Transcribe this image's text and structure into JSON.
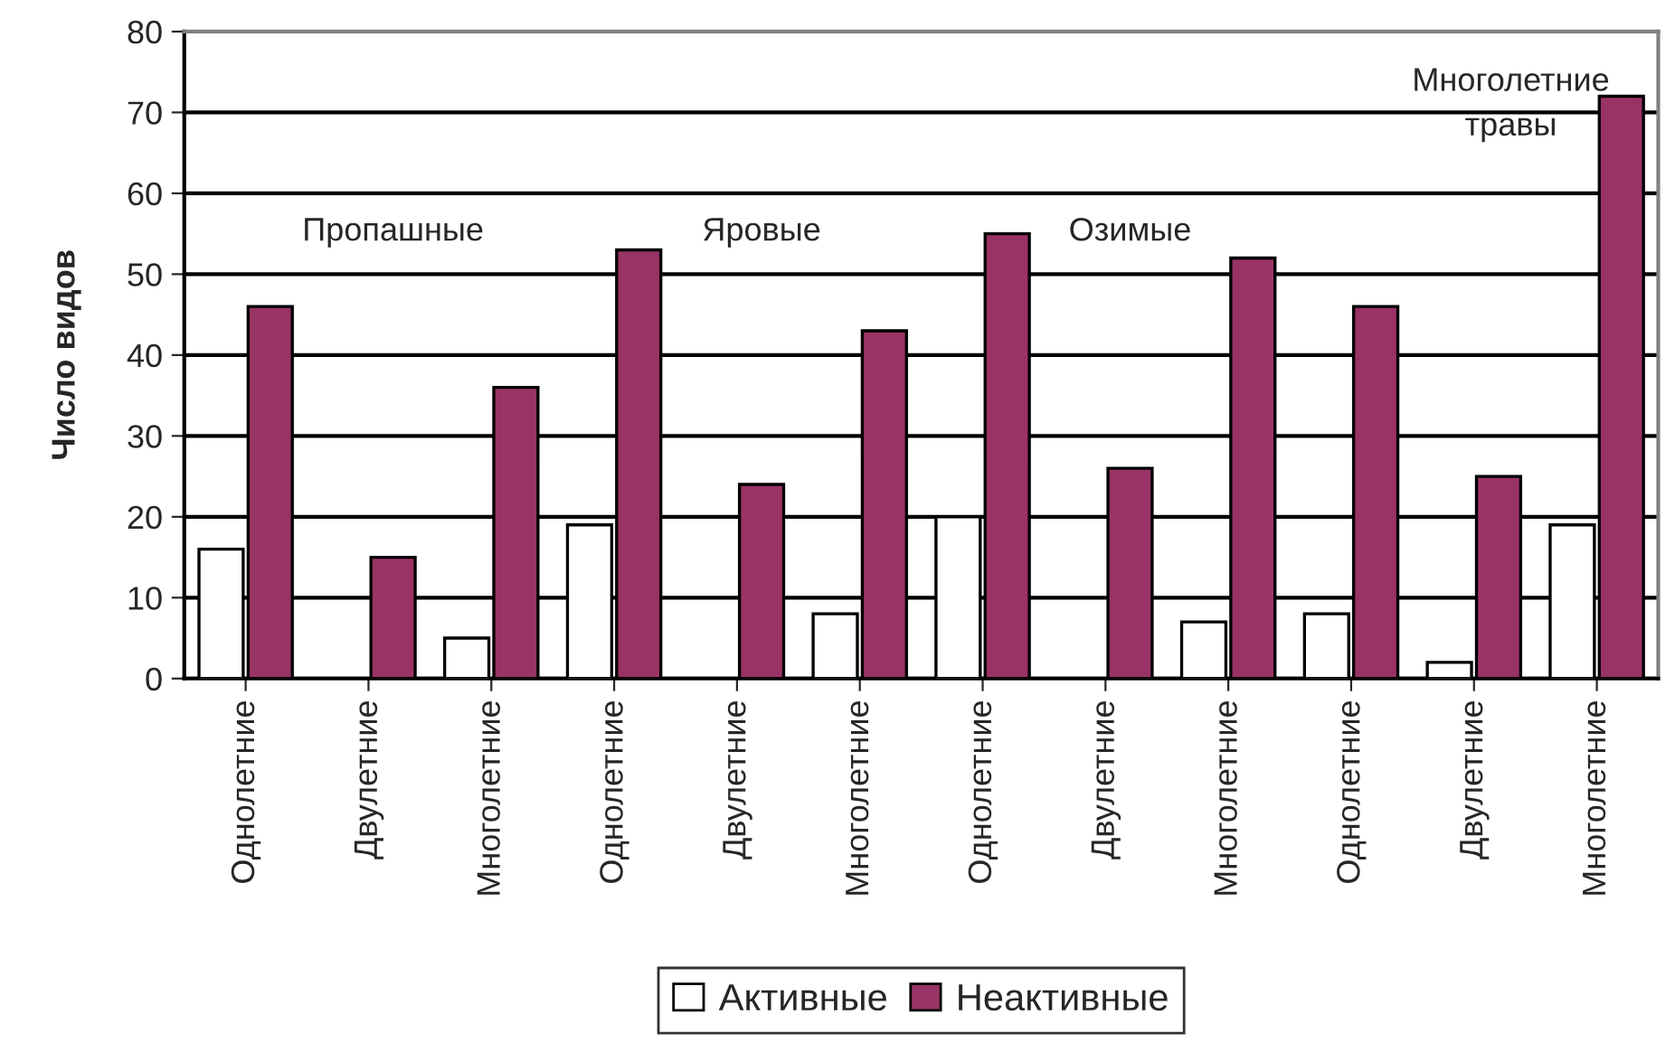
{
  "chart_data": {
    "type": "bar",
    "ylabel": "Число видов",
    "categories": [
      "Однолетние",
      "Двулетние",
      "Многолетние",
      "Однолетние",
      "Двулетние",
      "Многолетние",
      "Однолетние",
      "Двулетние",
      "Многолетние",
      "Однолетние",
      "Двулетние",
      "Многолетние"
    ],
    "series": [
      {
        "name": "Активные",
        "color": "#ffffff",
        "values": [
          16,
          0,
          5,
          19,
          0,
          8,
          20,
          0,
          7,
          8,
          2,
          19
        ]
      },
      {
        "name": "Неактивные",
        "color": "#993366",
        "values": [
          46,
          15,
          36,
          53,
          24,
          43,
          55,
          26,
          52,
          46,
          25,
          72
        ]
      }
    ],
    "ylim": [
      0,
      80
    ],
    "yticks": [
      0,
      10,
      20,
      30,
      40,
      50,
      60,
      70,
      80
    ],
    "grid": "y",
    "legend": "bottom",
    "annotations": [
      "Пропашные",
      "Яровые",
      "Озимые",
      "Многолетние\nтравы"
    ]
  }
}
